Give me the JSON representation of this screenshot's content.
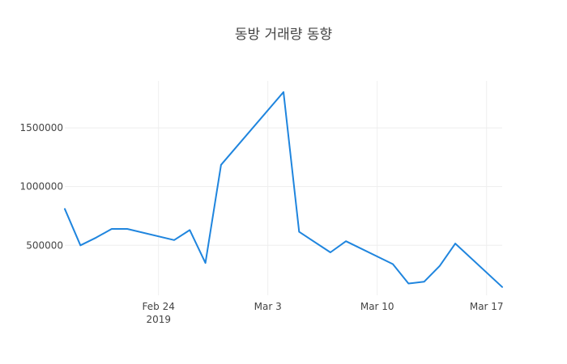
{
  "chart_data": {
    "type": "line",
    "title": "동방 거래량 동향",
    "xlabel": "",
    "ylabel": "",
    "line_color": "#1f85de",
    "grid": true,
    "x_dates": [
      "2019-02-18",
      "2019-02-19",
      "2019-02-20",
      "2019-02-21",
      "2019-02-22",
      "2019-02-25",
      "2019-02-26",
      "2019-02-27",
      "2019-02-28",
      "2019-03-04",
      "2019-03-05",
      "2019-03-07",
      "2019-03-08",
      "2019-03-11",
      "2019-03-12",
      "2019-03-13",
      "2019-03-14",
      "2019-03-15",
      "2019-03-18"
    ],
    "values": [
      810000,
      500000,
      565000,
      640000,
      640000,
      545000,
      630000,
      350000,
      1185000,
      1805000,
      615000,
      440000,
      535000,
      340000,
      175000,
      190000,
      325000,
      515000,
      145000
    ],
    "xlim": [
      "2019-02-18",
      "2019-03-18"
    ],
    "ylim": [
      75000,
      1900000
    ],
    "x_ticks": [
      {
        "date": "2019-02-24",
        "label": "Feb 24",
        "sublabel": "2019"
      },
      {
        "date": "2019-03-03",
        "label": "Mar 3",
        "sublabel": ""
      },
      {
        "date": "2019-03-10",
        "label": "Mar 10",
        "sublabel": ""
      },
      {
        "date": "2019-03-17",
        "label": "Mar 17",
        "sublabel": ""
      }
    ],
    "y_ticks": [
      {
        "value": 500000,
        "label": "500000"
      },
      {
        "value": 1000000,
        "label": "1000000"
      },
      {
        "value": 1500000,
        "label": "1500000"
      }
    ]
  }
}
